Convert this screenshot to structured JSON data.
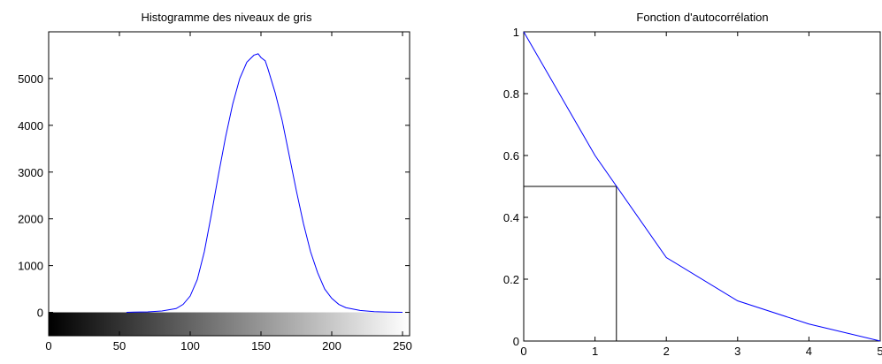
{
  "chart_data": [
    {
      "type": "line",
      "title": "Histogramme des niveaux de gris",
      "xlabel": "",
      "ylabel": "",
      "xlim": [
        0,
        255
      ],
      "ylim": [
        -500,
        6000
      ],
      "x_ticks": [
        "0",
        "50",
        "100",
        "150",
        "200",
        "250"
      ],
      "y_ticks": [
        "0",
        "1000",
        "2000",
        "3000",
        "4000",
        "5000"
      ],
      "grid": false,
      "colorbar": "grayscale gradient 0 to 255 below the histogram baseline",
      "line_color": "#0000ff",
      "x": [
        55,
        60,
        70,
        80,
        90,
        95,
        100,
        105,
        110,
        115,
        120,
        125,
        130,
        135,
        140,
        145,
        148,
        150,
        153,
        155,
        160,
        165,
        170,
        175,
        180,
        185,
        190,
        195,
        200,
        205,
        210,
        220,
        230,
        240,
        250
      ],
      "y": [
        0,
        5,
        10,
        30,
        80,
        170,
        350,
        700,
        1300,
        2100,
        2950,
        3750,
        4450,
        5000,
        5350,
        5500,
        5530,
        5450,
        5380,
        5200,
        4700,
        4100,
        3350,
        2600,
        1900,
        1300,
        850,
        500,
        300,
        170,
        100,
        40,
        15,
        5,
        0
      ]
    },
    {
      "type": "line",
      "title": "Fonction d'autocorrélation",
      "xlabel": "",
      "ylabel": "",
      "xlim": [
        0,
        5
      ],
      "ylim": [
        0,
        1
      ],
      "x_ticks": [
        "0",
        "1",
        "2",
        "3",
        "4",
        "5"
      ],
      "y_ticks": [
        "0",
        "0.2",
        "0.4",
        "0.6",
        "0.8",
        "1"
      ],
      "grid": false,
      "line_color": "#0000ff",
      "x": [
        0,
        1,
        2,
        3,
        4,
        5
      ],
      "y": [
        1,
        0.6,
        0.27,
        0.13,
        0.055,
        0
      ],
      "annotation": {
        "type": "crosshair",
        "x": 1.3,
        "y": 0.5,
        "color": "#000000"
      }
    }
  ]
}
